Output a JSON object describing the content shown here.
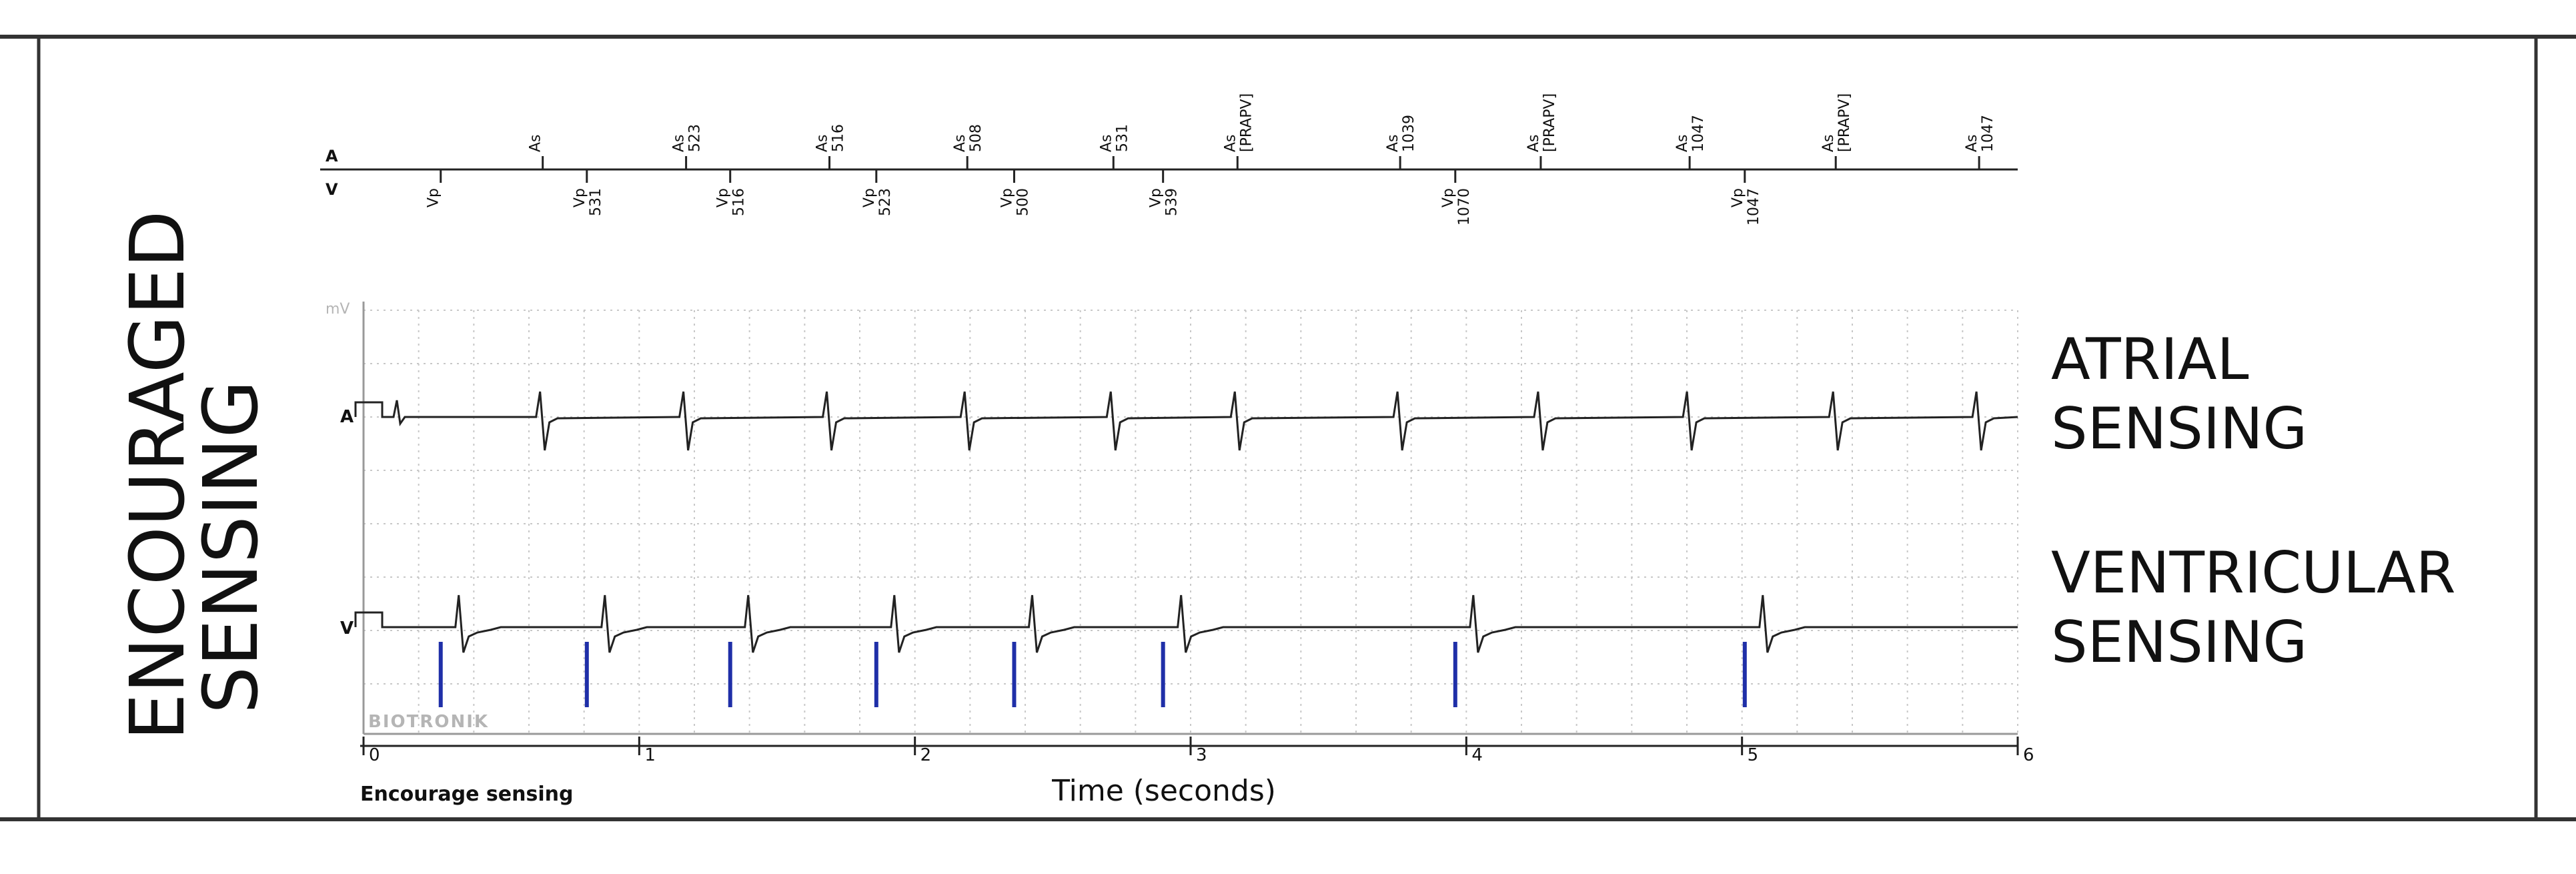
{
  "side_title": [
    "ENCOURAGED",
    "SENSING"
  ],
  "channel_label_a": "A",
  "channel_label_v": "V",
  "channel_label_a_trace": "A",
  "channel_label_v_trace": "V",
  "mv_label": "mV",
  "brand": "BIOTRONIK",
  "footer_label": "Encourage sensing",
  "axis_label": "Time (seconds)",
  "right_labels": {
    "atrial": [
      "ATRIAL",
      "SENSING"
    ],
    "ventricular": [
      "VENTRICULAR",
      "SENSING"
    ]
  },
  "time_ticks": [
    "0",
    "1",
    "2",
    "3",
    "4",
    "5",
    "6"
  ],
  "time_range": [
    0,
    6
  ],
  "atrial_markers": [
    {
      "t": 0.65,
      "label": "As",
      "value": ""
    },
    {
      "t": 1.17,
      "label": "As",
      "value": "523"
    },
    {
      "t": 1.69,
      "label": "As",
      "value": "516"
    },
    {
      "t": 2.19,
      "label": "As",
      "value": "508"
    },
    {
      "t": 2.72,
      "label": "As",
      "value": "531"
    },
    {
      "t": 3.17,
      "label": "As",
      "value": "[PRAPV]"
    },
    {
      "t": 3.76,
      "label": "As",
      "value": "1039"
    },
    {
      "t": 4.27,
      "label": "As",
      "value": "[PRAPV]"
    },
    {
      "t": 4.81,
      "label": "As",
      "value": "1047"
    },
    {
      "t": 5.34,
      "label": "As",
      "value": "[PRAPV]"
    },
    {
      "t": 5.86,
      "label": "As",
      "value": "1047"
    }
  ],
  "ventricular_markers": [
    {
      "t": 0.28,
      "label": "Vp",
      "value": ""
    },
    {
      "t": 0.81,
      "label": "Vp",
      "value": "531"
    },
    {
      "t": 1.33,
      "label": "Vp",
      "value": "516"
    },
    {
      "t": 1.86,
      "label": "Vp",
      "value": "523"
    },
    {
      "t": 2.36,
      "label": "Vp",
      "value": "500"
    },
    {
      "t": 2.9,
      "label": "Vp",
      "value": "539"
    },
    {
      "t": 3.96,
      "label": "Vp",
      "value": "1070"
    },
    {
      "t": 5.01,
      "label": "Vp",
      "value": "1047"
    }
  ],
  "colors": {
    "frame": "#333333",
    "trace": "#222222",
    "grid": "#c8c8c8",
    "pace": "#1f2fa8",
    "faint": "#b5b5b5"
  }
}
